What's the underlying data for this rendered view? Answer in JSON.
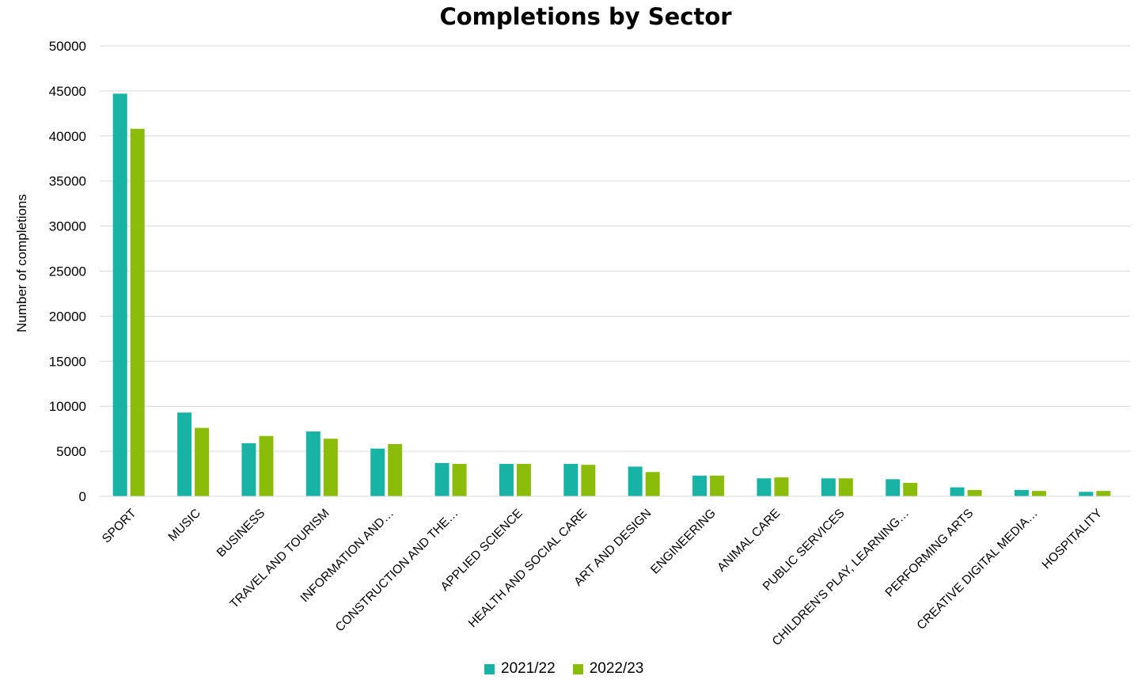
{
  "chart_data": {
    "type": "bar",
    "title": "Completions by Sector",
    "xlabel": "",
    "ylabel": "Number of completions",
    "ylim": [
      0,
      50000
    ],
    "yticks": [
      0,
      5000,
      10000,
      15000,
      20000,
      25000,
      30000,
      35000,
      40000,
      45000,
      50000
    ],
    "grid": true,
    "legend_position": "bottom",
    "categories": [
      "SPORT",
      "MUSIC",
      "BUSINESS",
      "TRAVEL AND TOURISM",
      "INFORMATION AND…",
      "CONSTRUCTION AND THE…",
      "APPLIED SCIENCE",
      "HEALTH AND SOCIAL CARE",
      "ART AND DESIGN",
      "ENGINEERING",
      "ANIMAL CARE",
      "PUBLIC SERVICES",
      "CHILDREN'S PLAY, LEARNING…",
      "PERFORMING ARTS",
      "CREATIVE DIGITAL MEDIA…",
      "HOSPITALITY"
    ],
    "series": [
      {
        "name": "2021/22",
        "color": "#17b4a5",
        "values": [
          44700,
          9300,
          5900,
          7200,
          5300,
          3700,
          3600,
          3600,
          3300,
          2300,
          2000,
          2000,
          1900,
          1000,
          700,
          500
        ]
      },
      {
        "name": "2022/23",
        "color": "#8cbc0a",
        "values": [
          40800,
          7600,
          6700,
          6400,
          5800,
          3600,
          3600,
          3500,
          2700,
          2300,
          2100,
          2000,
          1500,
          700,
          600,
          600
        ]
      }
    ]
  }
}
